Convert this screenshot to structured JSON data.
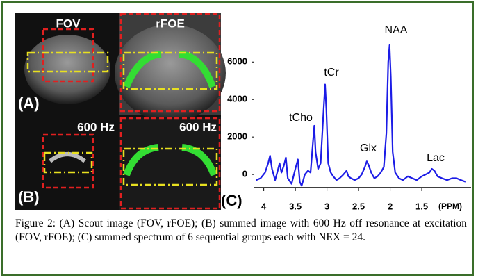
{
  "images": {
    "top_left": "FOV",
    "top_right": "rFOE",
    "row_a": "(A)",
    "bottom_left": "600 Hz",
    "bottom_right": "600 Hz",
    "row_b": "(B)"
  },
  "chart_data": {
    "type": "line",
    "panel_label": "(C)",
    "x_label": "(PPM)",
    "x": [
      4.12,
      4.05,
      3.98,
      3.93,
      3.9,
      3.87,
      3.82,
      3.78,
      3.75,
      3.72,
      3.68,
      3.65,
      3.62,
      3.56,
      3.5,
      3.46,
      3.43,
      3.4,
      3.35,
      3.3,
      3.26,
      3.22,
      3.2,
      3.18,
      3.14,
      3.1,
      3.06,
      3.03,
      3.01,
      2.98,
      2.94,
      2.9,
      2.85,
      2.8,
      2.74,
      2.69,
      2.66,
      2.62,
      2.56,
      2.5,
      2.45,
      2.4,
      2.37,
      2.34,
      2.3,
      2.25,
      2.2,
      2.15,
      2.1,
      2.06,
      2.03,
      2.01,
      1.99,
      1.96,
      1.92,
      1.86,
      1.8,
      1.72,
      1.65,
      1.58,
      1.5,
      1.44,
      1.38,
      1.34,
      1.3,
      1.25,
      1.18,
      1.1,
      1.02,
      0.95,
      0.88,
      0.8
    ],
    "values": [
      -300,
      -200,
      100,
      600,
      1000,
      300,
      -300,
      200,
      600,
      100,
      500,
      900,
      -200,
      -500,
      300,
      800,
      -400,
      -600,
      0,
      200,
      100,
      1800,
      2600,
      1200,
      300,
      600,
      3000,
      4800,
      3500,
      600,
      100,
      -100,
      -300,
      -200,
      0,
      200,
      -100,
      -200,
      -300,
      -200,
      0,
      400,
      700,
      500,
      100,
      -200,
      -100,
      100,
      400,
      2200,
      6000,
      6900,
      5200,
      1200,
      100,
      -200,
      -300,
      -100,
      -200,
      -300,
      -100,
      0,
      100,
      300,
      200,
      -100,
      -200,
      -300,
      -200,
      -200,
      -300,
      -400
    ],
    "color": "#1c1ce6",
    "xlim": [
      4.15,
      0.72
    ],
    "xticks": [
      4,
      3.5,
      3,
      2.5,
      2,
      1.5
    ],
    "ylim": [
      -700,
      7900
    ],
    "yticks": [
      0,
      2000,
      4000,
      6000
    ],
    "annotations": [
      "tCho",
      "tCr",
      "NAA",
      "Glx",
      "Lac"
    ]
  },
  "caption": "Figure 2: (A) Scout image (FOV, rFOE); (B) summed image with 600 Hz off resonance at excitation (FOV, rFOE); (C) summed spectrum of 6 sequential groups each with NEX = 24."
}
